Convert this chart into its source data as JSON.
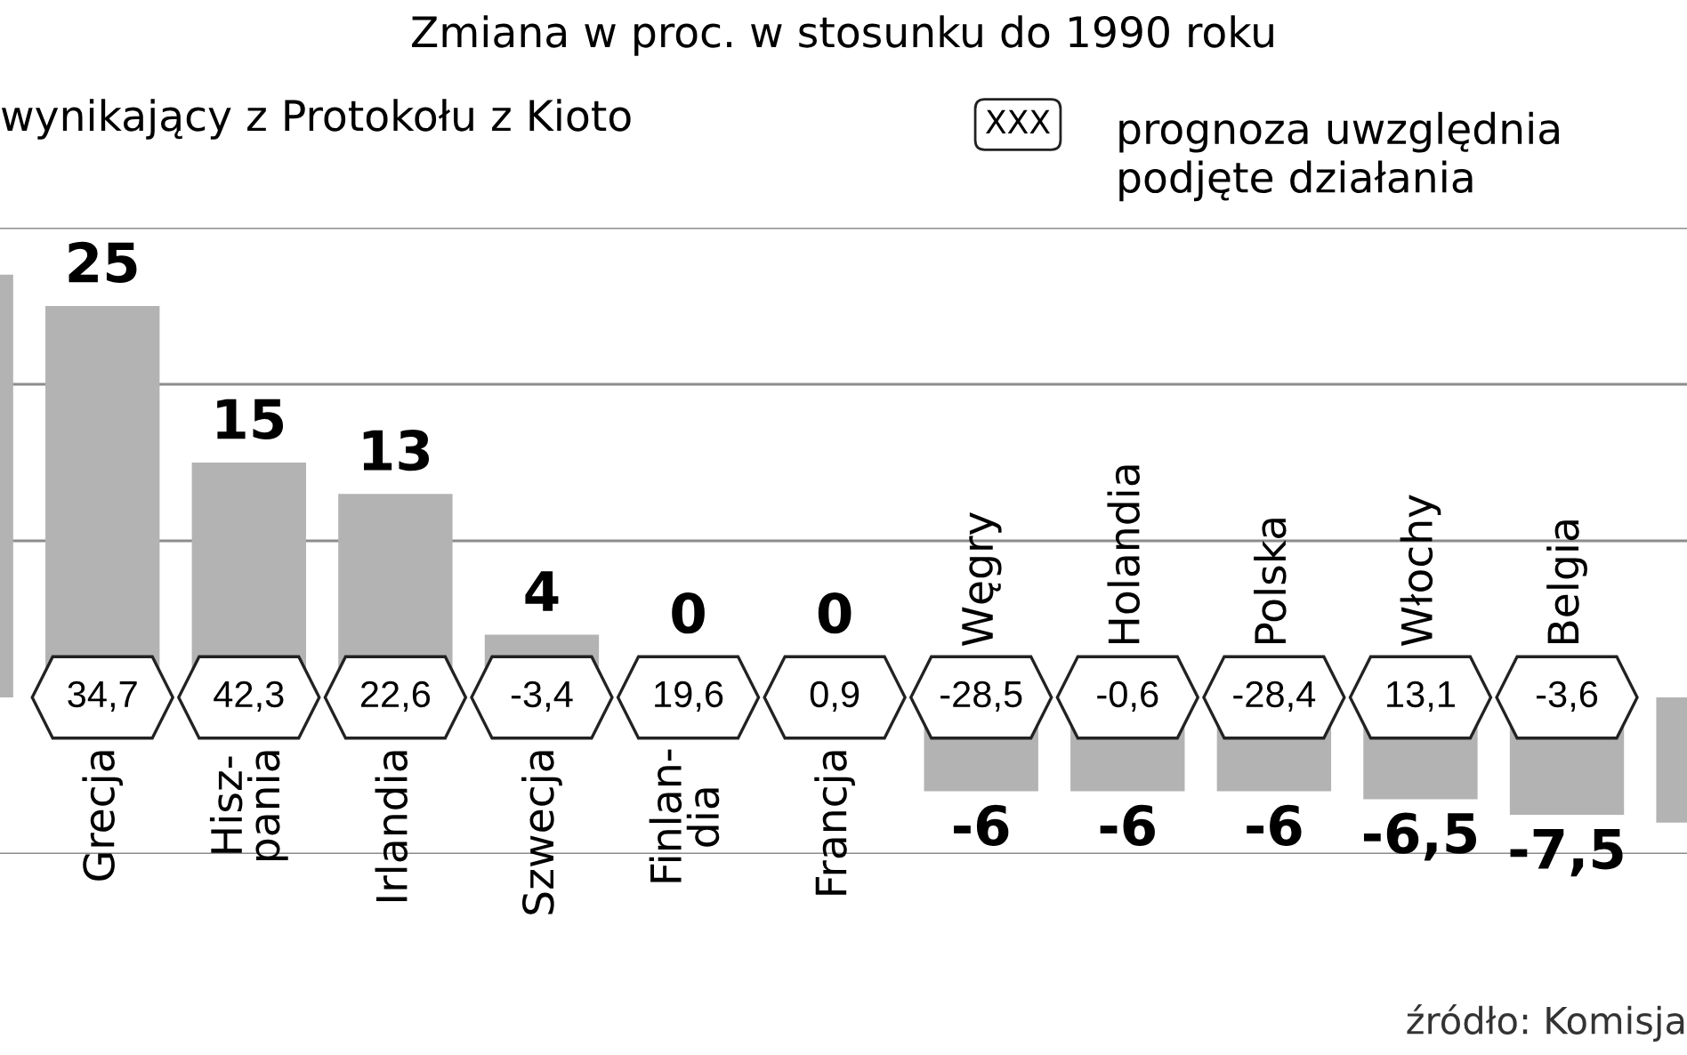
{
  "chart_data": {
    "type": "bar",
    "title": "Zmiana w proc. w stosunku do 1990 roku",
    "categories": [
      null,
      "Grecja",
      "Hisz-\npania",
      "Irlandia",
      "Szwecja",
      "Finlan-\ndia",
      "Francja",
      "Węgry",
      "Holandia",
      "Polska",
      "Włochy",
      "Belgia",
      null
    ],
    "values": [
      27,
      25,
      15,
      13,
      4,
      0,
      0,
      -6,
      -6,
      -6,
      -6.5,
      -7.5,
      -8
    ],
    "value_labels": [
      null,
      "25",
      "15",
      "13",
      "4",
      "0",
      "0",
      "-6",
      "-6",
      "-6",
      "-6,5",
      "-7,5",
      null
    ],
    "color": "#b3b3b3",
    "ref_lines": [
      {
        "axis": "y",
        "value": -10,
        "color": "#8c8c8c"
      },
      {
        "axis": "y",
        "value": 10,
        "color": "#8c8c8c"
      },
      {
        "axis": "y",
        "value": 20,
        "color": "#8c8c8c"
      },
      {
        "axis": "y",
        "value": 30,
        "color": "#8c8c8c"
      }
    ],
    "annotations": [
      "wynikający z Protokołu z Kioto",
      "XXX",
      "prognoza uwzględnia\npodjęte działania",
      "źródło: Komisja",
      {
        "text": "34,7",
        "x": "Grecja",
        "y": 0
      },
      {
        "text": "42,3",
        "x": "Hisz-\npania",
        "y": 0
      },
      {
        "text": "22,6",
        "x": "Irlandia",
        "y": 0
      },
      {
        "text": "-3,4",
        "x": "Szwecja",
        "y": 0
      },
      {
        "text": "19,6",
        "x": "Finlan-\ndia",
        "y": 0
      },
      {
        "text": "0,9",
        "x": "Francja",
        "y": 0
      },
      {
        "text": "-28,5",
        "x": "Węgry",
        "y": 0
      },
      {
        "text": "-0,6",
        "x": "Holandia",
        "y": 0
      },
      {
        "text": "-28,4",
        "x": "Polska",
        "y": 0
      },
      {
        "text": "13,1",
        "x": "Włochy",
        "y": 0
      },
      {
        "text": "-3,6",
        "x": "Belgia",
        "y": 0
      }
    ]
  }
}
